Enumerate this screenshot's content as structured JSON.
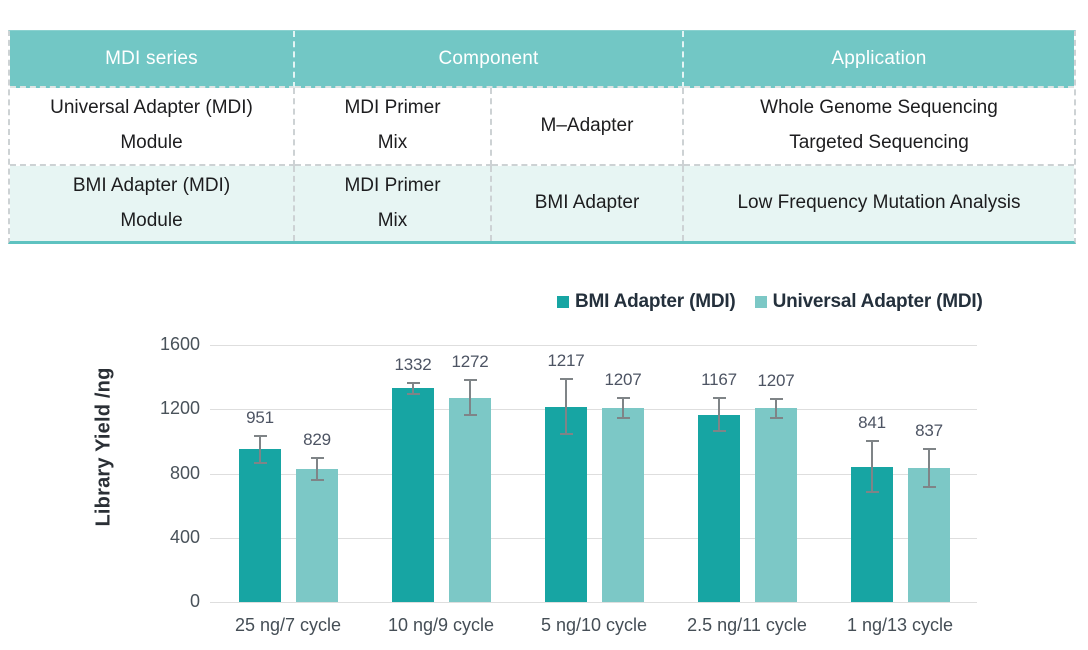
{
  "colors": {
    "teal_dark": "#17a5a3",
    "teal_light": "#7cc8c6",
    "table_header_bg": "#72c7c5",
    "table_alt_row_bg": "#e7f5f3",
    "table_bottom_border": "#5ec2c0",
    "gridline": "#dedede",
    "error_bar": "#7f8487"
  },
  "table": {
    "header": {
      "col1": "MDI series",
      "col2": "Component",
      "col3": "Application"
    },
    "rows": [
      {
        "series": "Universal Adapter (MDI)\nModule",
        "component_a": "MDI Primer\nMix",
        "component_b": "M–Adapter",
        "application": "Whole Genome Sequencing\nTargeted Sequencing"
      },
      {
        "series": "BMI Adapter (MDI)\nModule",
        "component_a": "MDI Primer\nMix",
        "component_b": "BMI Adapter",
        "application": "Low Frequency Mutation Analysis"
      }
    ]
  },
  "chart_data": {
    "type": "bar",
    "title": "",
    "xlabel": "",
    "ylabel": "Library Yield /ng",
    "ylim": [
      0,
      1600
    ],
    "yticks": [
      0,
      400,
      800,
      1200,
      1600
    ],
    "grid": true,
    "legend_position": "top-right",
    "categories": [
      "25 ng/7 cycle",
      "10 ng/9 cycle",
      "5 ng/10 cycle",
      "2.5 ng/11 cycle",
      "1 ng/13 cycle"
    ],
    "series": [
      {
        "name": "BMI Adapter (MDI)",
        "color": "#17a5a3",
        "values": [
          951,
          1332,
          1217,
          1167,
          841
        ],
        "errors": [
          90,
          40,
          175,
          110,
          165
        ]
      },
      {
        "name": "Universal Adapter (MDI)",
        "color": "#7cc8c6",
        "values": [
          829,
          1272,
          1207,
          1207,
          837
        ],
        "errors": [
          77,
          115,
          70,
          65,
          125
        ]
      }
    ]
  }
}
